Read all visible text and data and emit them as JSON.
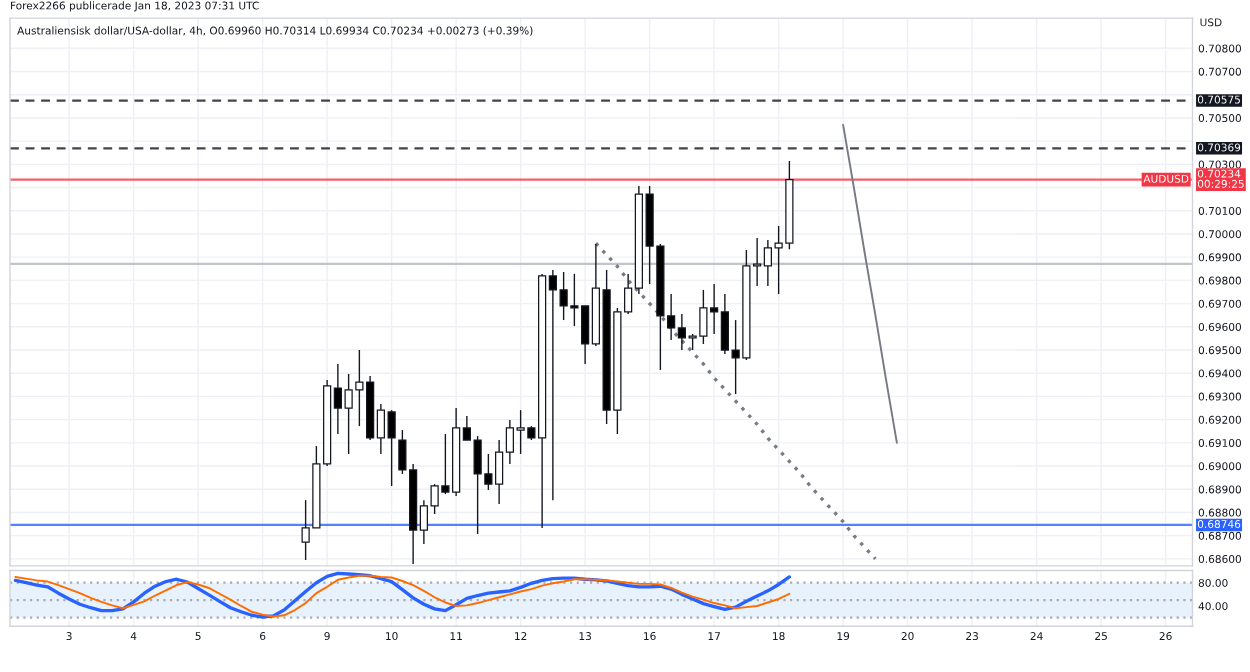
{
  "chart_data": [
    {
      "type": "candlestick",
      "title": "Forex2266 publicerade Jan 18, 2023 07:31 UTC",
      "subtitle": "Australiensisk dollar/USA-dollar, 4h, O0.69960 H0.70314 L0.69934 C0.70234 +0.00273 (+0.39%)",
      "ylabel": "USD",
      "categories": [
        null,
        null,
        null,
        null,
        null,
        "3",
        null,
        null,
        null,
        null,
        null,
        "4",
        null,
        null,
        null,
        null,
        null,
        "5",
        null,
        null,
        null,
        null,
        null,
        "6",
        null,
        null,
        null,
        null,
        null,
        "9",
        null,
        null,
        null,
        null,
        null,
        "10",
        null,
        null,
        null,
        null,
        null,
        "11",
        null,
        null,
        null,
        null,
        null,
        "12",
        null,
        null,
        null,
        null,
        null,
        "13",
        null,
        null,
        null,
        null,
        null,
        "16",
        null,
        null,
        null,
        null,
        null,
        "17",
        null,
        null,
        null,
        null,
        null,
        "18",
        null,
        null,
        null,
        null,
        null,
        "19",
        null,
        null,
        null,
        null,
        null,
        "20",
        null,
        null,
        null,
        null,
        null,
        "23",
        null,
        null,
        null,
        null,
        null,
        "24",
        null,
        null,
        null,
        null,
        null,
        "25",
        null,
        null,
        null,
        null,
        null,
        "26",
        null,
        null
      ],
      "ohlc": [
        null,
        null,
        null,
        null,
        null,
        null,
        null,
        null,
        null,
        null,
        null,
        null,
        null,
        null,
        null,
        null,
        null,
        null,
        null,
        null,
        null,
        null,
        null,
        null,
        null,
        null,
        null,
        [
          0.68672,
          0.68853,
          0.68595,
          0.68733
        ],
        [
          0.68733,
          0.69086,
          0.68733,
          0.69009
        ],
        [
          0.69009,
          0.69371,
          0.69,
          0.69345
        ],
        [
          0.69336,
          0.6944,
          0.69138,
          0.6925
        ],
        [
          0.6925,
          0.69397,
          0.69052,
          0.69328
        ],
        [
          0.69328,
          0.695,
          0.69172,
          0.69362
        ],
        [
          0.69362,
          0.69388,
          0.69112,
          0.69121
        ],
        [
          0.69121,
          0.69267,
          0.69052,
          0.69241
        ],
        [
          0.69233,
          0.69241,
          0.68914,
          0.69121
        ],
        [
          0.69112,
          0.69155,
          0.68966,
          0.68983
        ],
        [
          0.68983,
          0.69009,
          0.68578,
          0.68724
        ],
        [
          0.68724,
          0.68853,
          0.68664,
          0.68828
        ],
        [
          0.68828,
          0.68922,
          0.68793,
          0.68914
        ],
        [
          0.68914,
          0.69138,
          0.68879,
          0.68888
        ],
        [
          0.68888,
          0.6925,
          0.68871,
          0.69164
        ],
        [
          0.69164,
          0.69216,
          0.69112,
          0.69112
        ],
        [
          0.69112,
          0.69129,
          0.68707,
          0.68966
        ],
        [
          0.68966,
          0.69052,
          0.68897,
          0.68922
        ],
        [
          0.68922,
          0.69112,
          0.68836,
          0.6906
        ],
        [
          0.6906,
          0.69198,
          0.69009,
          0.69164
        ],
        [
          0.69155,
          0.69241,
          0.69052,
          0.69164
        ],
        [
          0.69164,
          0.69172,
          0.69112,
          0.69121
        ],
        [
          0.69121,
          0.69828,
          0.68733,
          0.69819
        ],
        [
          0.69819,
          0.69845,
          0.68853,
          0.69759
        ],
        [
          0.69759,
          0.69836,
          0.69629,
          0.6969
        ],
        [
          0.6969,
          0.69828,
          0.69603,
          0.69681
        ],
        [
          0.6969,
          0.6969,
          0.6944,
          0.69526
        ],
        [
          0.69526,
          0.69957,
          0.69517,
          0.69767
        ],
        [
          0.69759,
          0.69845,
          0.69181,
          0.69241
        ],
        [
          0.69241,
          0.69681,
          0.69138,
          0.69664
        ],
        [
          0.69664,
          0.69828,
          0.69655,
          0.69767
        ],
        [
          0.69767,
          0.70207,
          0.69741,
          0.70172
        ],
        [
          0.70172,
          0.70207,
          0.69784,
          0.69948
        ],
        [
          0.69948,
          0.69957,
          0.69414,
          0.69647
        ],
        [
          0.69647,
          0.69741,
          0.69543,
          0.69595
        ],
        [
          0.69595,
          0.69655,
          0.695,
          0.69552
        ],
        [
          0.69552,
          0.69569,
          0.695,
          0.6956
        ],
        [
          0.6956,
          0.69759,
          0.69526,
          0.69681
        ],
        [
          0.69681,
          0.69784,
          0.69569,
          0.69664
        ],
        [
          0.69664,
          0.69741,
          0.69483,
          0.695
        ],
        [
          0.695,
          0.69629,
          0.6931,
          0.69466
        ],
        [
          0.69466,
          0.69931,
          0.69457,
          0.69862
        ],
        [
          0.69862,
          0.69983,
          0.69776,
          0.6987
        ],
        [
          0.69862,
          0.69974,
          0.69776,
          0.6994
        ],
        [
          0.6994,
          0.70034,
          0.69741,
          0.6996
        ],
        [
          0.6996,
          0.70314,
          0.69934,
          0.70234
        ],
        null,
        null,
        null,
        null,
        null,
        null,
        null,
        null,
        null,
        null,
        null,
        null,
        null,
        null,
        null,
        null,
        null,
        null,
        null,
        null,
        null,
        null,
        null,
        null,
        null,
        null,
        null,
        null,
        null,
        null,
        null,
        null,
        null,
        null,
        null,
        null,
        null
      ],
      "series": [
        {
          "type": "line",
          "color": "#787b86",
          "line_style": "dotted",
          "values": [
            null,
            null,
            null,
            null,
            null,
            null,
            null,
            null,
            null,
            null,
            null,
            null,
            null,
            null,
            null,
            null,
            null,
            null,
            null,
            null,
            null,
            null,
            null,
            null,
            null,
            null,
            null,
            null,
            null,
            null,
            null,
            null,
            null,
            null,
            null,
            null,
            null,
            null,
            null,
            null,
            null,
            null,
            null,
            null,
            null,
            null,
            null,
            null,
            null,
            null,
            null,
            null,
            null,
            null,
            0.6996,
            0.6991,
            0.6986,
            0.698,
            0.6975,
            0.697,
            0.6965,
            0.6959,
            0.6954,
            0.6949,
            0.6944,
            0.6938,
            0.6933,
            0.6928,
            0.6923,
            0.6918,
            0.6912,
            0.6907,
            0.6902,
            0.6897,
            0.6891,
            0.6886,
            0.6881,
            0.6876,
            0.687,
            0.6865,
            0.686,
            null,
            null,
            null,
            null,
            null,
            null,
            null,
            null,
            null,
            null,
            null,
            null,
            null,
            null,
            null,
            null,
            null,
            null,
            null,
            null,
            null,
            null,
            null,
            null,
            null,
            null,
            null,
            null,
            null
          ]
        },
        {
          "type": "line",
          "color": "#787b86",
          "line_style": "solid",
          "values": [
            null,
            null,
            null,
            null,
            null,
            null,
            null,
            null,
            null,
            null,
            null,
            null,
            null,
            null,
            null,
            null,
            null,
            null,
            null,
            null,
            null,
            null,
            null,
            null,
            null,
            null,
            null,
            null,
            null,
            null,
            null,
            null,
            null,
            null,
            null,
            null,
            null,
            null,
            null,
            null,
            null,
            null,
            null,
            null,
            null,
            null,
            null,
            null,
            null,
            null,
            null,
            null,
            null,
            null,
            null,
            null,
            null,
            null,
            null,
            null,
            null,
            null,
            null,
            null,
            null,
            null,
            null,
            null,
            null,
            null,
            null,
            null,
            null,
            null,
            null,
            null,
            null,
            0.7047,
            0.702,
            0.6992,
            0.6965,
            0.6937,
            0.691,
            null,
            null,
            null,
            null,
            null,
            null,
            null,
            null,
            null,
            null,
            null,
            null,
            null,
            null,
            null,
            null,
            null,
            null,
            null,
            null,
            null,
            null,
            null,
            null,
            null,
            null,
            null
          ]
        }
      ],
      "ylim": [
        0.6857,
        0.7093
      ],
      "yticks": [
        {
          "value": 0.686,
          "label": "0.68600"
        },
        {
          "value": 0.687,
          "label": "0.68700"
        },
        {
          "value": 0.688,
          "label": "0.68800"
        },
        {
          "value": 0.689,
          "label": "0.68900"
        },
        {
          "value": 0.69,
          "label": "0.69000"
        },
        {
          "value": 0.691,
          "label": "0.69100"
        },
        {
          "value": 0.692,
          "label": "0.69200"
        },
        {
          "value": 0.693,
          "label": "0.69300"
        },
        {
          "value": 0.694,
          "label": "0.69400"
        },
        {
          "value": 0.695,
          "label": "0.69500"
        },
        {
          "value": 0.696,
          "label": "0.69600"
        },
        {
          "value": 0.697,
          "label": "0.69700"
        },
        {
          "value": 0.698,
          "label": "0.69800"
        },
        {
          "value": 0.699,
          "label": "0.69900"
        },
        {
          "value": 0.7,
          "label": "0.70000"
        },
        {
          "value": 0.701,
          "label": "0.70100"
        },
        {
          "value": 0.702,
          "label": null
        },
        {
          "value": 0.703,
          "label": "0.70300"
        },
        {
          "value": 0.704,
          "label": null
        },
        {
          "value": 0.705,
          "label": "0.70500"
        },
        {
          "value": 0.706,
          "label": null
        },
        {
          "value": 0.707,
          "label": "0.70700"
        },
        {
          "value": 0.708,
          "label": "0.70800"
        }
      ],
      "ref_lines": [
        {
          "axis": "y",
          "value": 0.70575,
          "label": "0.70575",
          "color": "#131722",
          "line_style": "dashed"
        },
        {
          "axis": "y",
          "value": 0.70369,
          "label": "0.70369",
          "color": "#131722",
          "line_style": "dashed"
        },
        {
          "axis": "y",
          "value": 0.70234,
          "label": "0.70234\n00:29:25",
          "color": "#f23645",
          "line_style": "solid"
        },
        {
          "axis": "y",
          "value": 0.69871,
          "color": "#b2b5be",
          "line_style": "solid"
        },
        {
          "axis": "y",
          "value": 0.68746,
          "label": "0.68746",
          "color": "#2962ff",
          "line_style": "solid"
        }
      ],
      "annotations": [
        {
          "text": "AUDUSD",
          "y": 0.70234
        }
      ],
      "grid": true,
      "tick_labels": "y"
    },
    {
      "type": "line",
      "categories": [
        null,
        null,
        null,
        null,
        null,
        "3",
        null,
        null,
        null,
        null,
        null,
        "4",
        null,
        null,
        null,
        null,
        null,
        "5",
        null,
        null,
        null,
        null,
        null,
        "6",
        null,
        null,
        null,
        null,
        null,
        "9",
        null,
        null,
        null,
        null,
        null,
        "10",
        null,
        null,
        null,
        null,
        null,
        "11",
        null,
        null,
        null,
        null,
        null,
        "12",
        null,
        null,
        null,
        null,
        null,
        "13",
        null,
        null,
        null,
        null,
        null,
        "16",
        null,
        null,
        null,
        null,
        null,
        "17",
        null,
        null,
        null,
        null,
        null,
        "18",
        null,
        null,
        null,
        null,
        null,
        "19",
        null,
        null,
        null,
        null,
        null,
        "20",
        null,
        null,
        null,
        null,
        null,
        "23",
        null,
        null,
        null,
        null,
        null,
        "24",
        null,
        null,
        null,
        null,
        null,
        "25",
        null,
        null,
        null,
        null,
        null,
        "26",
        null,
        null
      ],
      "series": [
        {
          "color": "#2962ff",
          "values": [
            84,
            80,
            76,
            73,
            62,
            52,
            43,
            37,
            32,
            32,
            35,
            47,
            62,
            74,
            82,
            86,
            81,
            70,
            59,
            48,
            37,
            30,
            24,
            21,
            23,
            33,
            49,
            65,
            80,
            91,
            96,
            95,
            94,
            92,
            87,
            82,
            68,
            54,
            43,
            35,
            32,
            42,
            53,
            58,
            62,
            64,
            66,
            72,
            79,
            84,
            87,
            88,
            88,
            86,
            85,
            83,
            79,
            75,
            73,
            73,
            74,
            69,
            60,
            52,
            44,
            39,
            34,
            38,
            48,
            57,
            66,
            77,
            90,
            null,
            null,
            null,
            null,
            null,
            null,
            null,
            null,
            null,
            null,
            null,
            null,
            null,
            null,
            null,
            null,
            null,
            null,
            null,
            null,
            null,
            null,
            null,
            null,
            null,
            null,
            null,
            null,
            null,
            null,
            null,
            null,
            null,
            null,
            null,
            null,
            null
          ]
        },
        {
          "color": "#ff6d00",
          "values": [
            90,
            87,
            84,
            82,
            76,
            69,
            62,
            54,
            47,
            41,
            36,
            42,
            48,
            58,
            67,
            76,
            81,
            77,
            71,
            61,
            51,
            40,
            30,
            25,
            22,
            24,
            33,
            45,
            62,
            73,
            85,
            89,
            92,
            92,
            90,
            89,
            83,
            76,
            66,
            55,
            46,
            40,
            41,
            45,
            50,
            55,
            60,
            65,
            69,
            75,
            79,
            82,
            86,
            86,
            85,
            84,
            82,
            80,
            78,
            78,
            77,
            71,
            63,
            56,
            51,
            45,
            41,
            36,
            38,
            40,
            46,
            52,
            61,
            null,
            null,
            null,
            null,
            null,
            null,
            null,
            null,
            null,
            null,
            null,
            null,
            null,
            null,
            null,
            null,
            null,
            null,
            null,
            null,
            null,
            null,
            null,
            null,
            null,
            null,
            null,
            null,
            null,
            null,
            null,
            null,
            null,
            null,
            null,
            null,
            null
          ]
        }
      ],
      "ylim": [
        5,
        101
      ],
      "yticks": [
        {
          "value": 80,
          "label": "80.00"
        },
        {
          "value": 40,
          "label": "40.00"
        }
      ],
      "bands": [
        {
          "axis": "y",
          "from": 20,
          "to": 80,
          "color": "#e8f2fd"
        }
      ],
      "ref_lines": [
        {
          "axis": "y",
          "value": 80,
          "color": "#9598a1",
          "line_style": "dotted"
        },
        {
          "axis": "y",
          "value": 50,
          "color": "#9598a1",
          "line_style": "dotted"
        },
        {
          "axis": "y",
          "value": 20,
          "color": "#9598a1",
          "line_style": "dotted"
        }
      ],
      "grid": "x"
    }
  ]
}
